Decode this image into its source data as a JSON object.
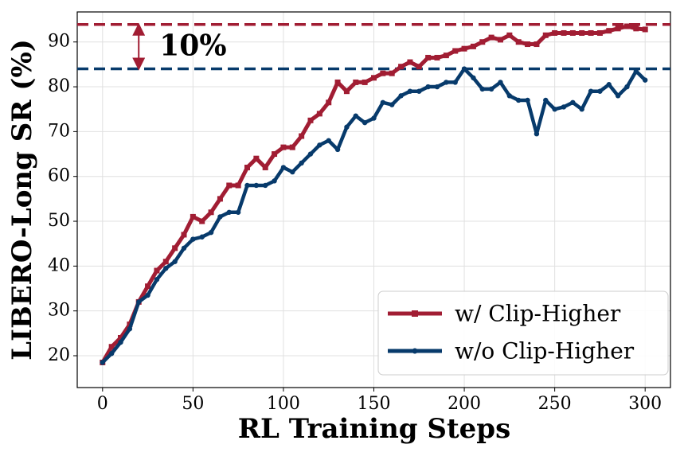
{
  "chart_data": {
    "type": "line",
    "x_label": "RL Training Steps",
    "y_label": "LIBERO-Long SR (%)",
    "x": [
      0,
      5,
      10,
      15,
      20,
      25,
      30,
      35,
      40,
      45,
      50,
      55,
      60,
      65,
      70,
      75,
      80,
      85,
      90,
      95,
      100,
      105,
      110,
      115,
      120,
      125,
      130,
      135,
      140,
      145,
      150,
      155,
      160,
      165,
      170,
      175,
      180,
      185,
      190,
      195,
      200,
      205,
      210,
      215,
      220,
      225,
      230,
      235,
      240,
      245,
      250,
      255,
      260,
      265,
      270,
      275,
      280,
      285,
      290,
      295,
      300
    ],
    "series": [
      {
        "name": "w/ Clip-Higher",
        "color": "#a11d33",
        "marker": "square",
        "values": [
          18.5,
          22,
          24,
          27,
          32,
          35.5,
          39,
          41,
          44,
          47,
          51,
          50,
          52,
          55,
          58,
          58,
          62,
          64,
          62,
          65,
          66.5,
          66.5,
          69,
          72.5,
          74,
          76.5,
          81,
          79,
          81,
          81,
          82,
          83,
          83,
          84.5,
          85.5,
          84.5,
          86.5,
          86.5,
          87,
          88,
          88.5,
          89,
          90,
          91,
          90.5,
          91.5,
          90,
          89.5,
          89.5,
          91.5,
          92,
          92,
          92,
          92,
          92,
          92,
          92.5,
          93,
          93.5,
          93,
          92.8
        ]
      },
      {
        "name": "w/o Clip-Higher",
        "color": "#073a6b",
        "marker": "circle",
        "values": [
          18.5,
          20.5,
          23,
          26,
          32,
          33.5,
          37,
          39.5,
          41,
          44,
          46,
          46.5,
          47.5,
          51,
          52,
          52,
          58,
          58,
          58,
          59,
          62,
          61,
          63,
          65,
          67,
          68,
          66,
          71,
          73.5,
          72,
          73,
          76.5,
          76,
          78,
          79,
          79,
          80,
          80,
          81,
          81,
          84,
          82,
          79.5,
          79.5,
          81,
          78,
          77,
          77,
          69.5,
          77,
          75,
          75.5,
          76.5,
          75,
          79,
          79,
          80.5,
          78,
          80,
          83.5,
          81.5
        ]
      }
    ],
    "reference_lines": [
      {
        "value": 93.9,
        "color": "#a11d33"
      },
      {
        "value": 84,
        "color": "#073a6b"
      }
    ],
    "annotation": "10%",
    "xlim": [
      -14,
      314
    ],
    "ylim": [
      12.9,
      96.7
    ],
    "xticks": [
      0,
      50,
      100,
      150,
      200,
      250,
      300
    ],
    "yticks": [
      20,
      30,
      40,
      50,
      60,
      70,
      80,
      90
    ],
    "grid": true,
    "legend": "lower right"
  }
}
